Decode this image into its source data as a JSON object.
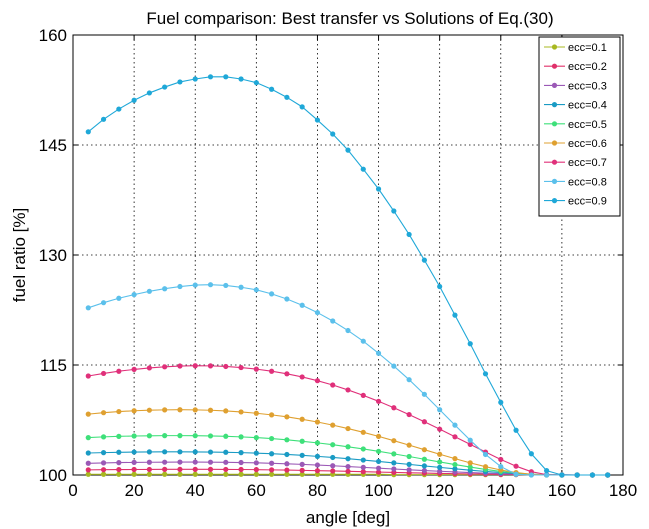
{
  "chart_data": {
    "type": "line",
    "title": "Fuel comparison: Best transfer vs Solutions of Eq.(30)",
    "xlabel": "angle [deg]",
    "ylabel": "fuel ratio [%]",
    "xlim": [
      0,
      180
    ],
    "ylim": [
      100,
      160
    ],
    "xticks": [
      "0",
      "20",
      "40",
      "60",
      "80",
      "100",
      "120",
      "140",
      "160",
      "180"
    ],
    "yticks": [
      "100",
      "115",
      "130",
      "145",
      "160"
    ],
    "grid": true,
    "legend_position": "top-right",
    "x": [
      5,
      10,
      15,
      20,
      25,
      30,
      35,
      40,
      45,
      50,
      55,
      60,
      65,
      70,
      75,
      80,
      85,
      90,
      95,
      100,
      105,
      110,
      115,
      120,
      125,
      130,
      135,
      140,
      145,
      150,
      155,
      160,
      165,
      170,
      175
    ],
    "series": [
      {
        "name": "ecc=0.1",
        "color": "#a8b820",
        "values": [
          100.1,
          100.1,
          100.1,
          100.1,
          100.1,
          100.1,
          100.1,
          100.1,
          100.1,
          100.1,
          100.1,
          100.1,
          100.1,
          100.1,
          100.1,
          100.1,
          100.1,
          100.1,
          100.1,
          100.1,
          100.05,
          100.05,
          100.05,
          100.05,
          100.05,
          100.05,
          100.05,
          100.05,
          100.05,
          100.05,
          100.0,
          100.0,
          100.0,
          100.0,
          100.0
        ]
      },
      {
        "name": "ecc=0.2",
        "color": "#e0306a",
        "values": [
          100.7,
          100.72,
          100.74,
          100.75,
          100.76,
          100.77,
          100.77,
          100.77,
          100.77,
          100.76,
          100.75,
          100.73,
          100.7,
          100.67,
          100.63,
          100.59,
          100.55,
          100.5,
          100.45,
          100.4,
          100.35,
          100.3,
          100.26,
          100.22,
          100.18,
          100.14,
          100.11,
          100.08,
          100.06,
          100.04,
          100.02,
          100.01,
          100.0,
          100.0,
          100.0
        ]
      },
      {
        "name": "ecc=0.3",
        "color": "#9b59b6",
        "values": [
          101.6,
          101.65,
          101.69,
          101.72,
          101.74,
          101.75,
          101.76,
          101.76,
          101.75,
          101.73,
          101.7,
          101.66,
          101.6,
          101.53,
          101.45,
          101.36,
          101.26,
          101.15,
          101.04,
          100.93,
          100.82,
          100.71,
          100.61,
          100.51,
          100.42,
          100.33,
          100.25,
          100.18,
          100.12,
          100.07,
          100.04,
          100.02,
          100.0,
          100.0,
          100.0
        ]
      },
      {
        "name": "ecc=0.4",
        "color": "#1a9bc4",
        "values": [
          103.0,
          103.05,
          103.1,
          103.13,
          103.15,
          103.16,
          103.16,
          103.15,
          103.13,
          103.1,
          103.05,
          102.98,
          102.9,
          102.8,
          102.68,
          102.54,
          102.39,
          102.22,
          102.04,
          101.85,
          101.65,
          101.45,
          101.24,
          101.04,
          100.84,
          100.65,
          100.48,
          100.33,
          100.2,
          100.1,
          100.04,
          100.01,
          100.0,
          100.0,
          100.0
        ]
      },
      {
        "name": "ecc=0.5",
        "color": "#3ee07a",
        "values": [
          105.1,
          105.2,
          105.27,
          105.32,
          105.35,
          105.37,
          105.37,
          105.36,
          105.33,
          105.28,
          105.2,
          105.1,
          104.97,
          104.8,
          104.6,
          104.38,
          104.13,
          103.85,
          103.55,
          103.23,
          102.88,
          102.52,
          102.15,
          101.78,
          101.42,
          101.08,
          100.76,
          100.48,
          100.26,
          100.1,
          100.02,
          100.0,
          100.0,
          100.0,
          100.0
        ]
      },
      {
        "name": "ecc=0.6",
        "color": "#dfa030",
        "values": [
          108.3,
          108.5,
          108.65,
          108.76,
          108.84,
          108.88,
          108.9,
          108.88,
          108.83,
          108.74,
          108.6,
          108.42,
          108.2,
          107.93,
          107.6,
          107.23,
          106.8,
          106.33,
          105.82,
          105.27,
          104.68,
          104.07,
          103.45,
          102.83,
          102.23,
          101.65,
          101.13,
          100.68,
          100.33,
          100.1,
          100.02,
          100.0,
          100.0,
          100.0,
          100.0
        ]
      },
      {
        "name": "ecc=0.7",
        "color": "#e0307a",
        "values": [
          113.5,
          113.85,
          114.15,
          114.4,
          114.6,
          114.75,
          114.86,
          114.9,
          114.88,
          114.8,
          114.65,
          114.44,
          114.15,
          113.8,
          113.37,
          112.86,
          112.27,
          111.6,
          110.86,
          110.05,
          109.17,
          108.24,
          107.26,
          106.25,
          105.21,
          104.17,
          103.13,
          102.12,
          101.2,
          100.45,
          100.05,
          100.0,
          100.0,
          100.0,
          100.0
        ]
      },
      {
        "name": "ecc=0.8",
        "color": "#5bc0eb",
        "values": [
          122.8,
          123.5,
          124.1,
          124.6,
          125.05,
          125.4,
          125.7,
          125.9,
          125.95,
          125.85,
          125.6,
          125.25,
          124.7,
          124.0,
          123.15,
          122.15,
          121.0,
          119.7,
          118.25,
          116.6,
          114.85,
          113.0,
          111.0,
          108.9,
          106.8,
          104.75,
          102.8,
          101.15,
          100.1,
          100.0,
          100.0,
          100.0,
          100.0,
          100.0,
          100.0
        ]
      },
      {
        "name": "ecc=0.9",
        "color": "#1fa8d8",
        "values": [
          146.8,
          148.5,
          149.9,
          151.1,
          152.1,
          152.9,
          153.6,
          154.0,
          154.3,
          154.3,
          154.0,
          153.5,
          152.6,
          151.5,
          150.2,
          148.4,
          146.5,
          144.3,
          141.7,
          139.0,
          136.0,
          132.8,
          129.3,
          125.7,
          121.8,
          117.9,
          113.8,
          109.9,
          106.1,
          102.9,
          100.6,
          100.0,
          100.0,
          100.0,
          100.0
        ]
      }
    ]
  }
}
